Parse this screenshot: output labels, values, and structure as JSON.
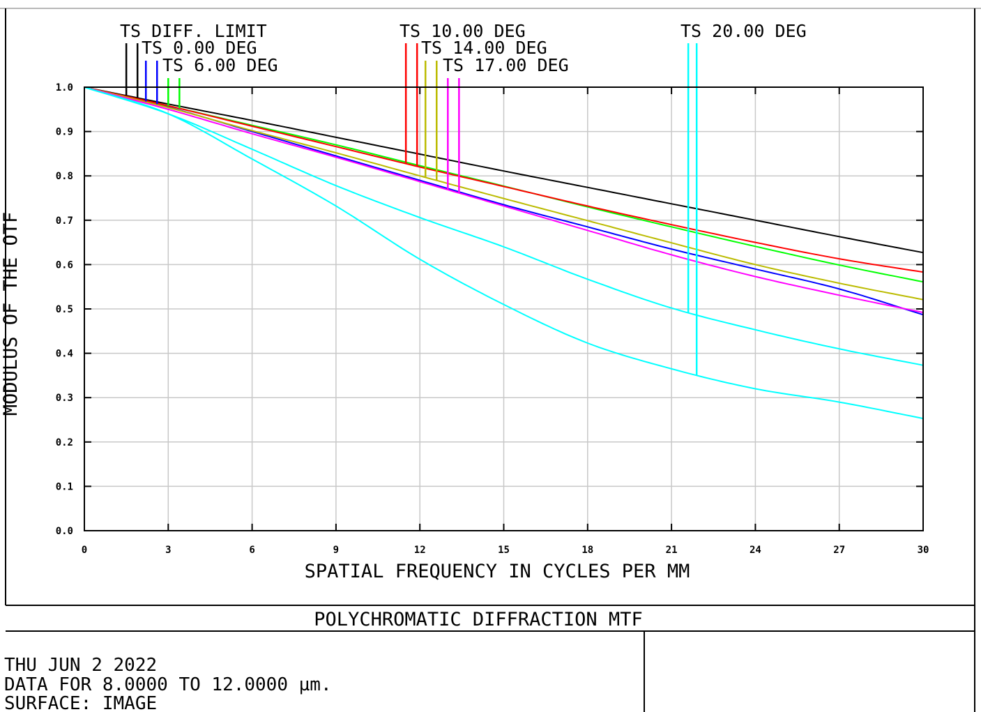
{
  "chart_data": {
    "type": "line",
    "title": "POLYCHROMATIC DIFFRACTION MTF",
    "xlabel": "SPATIAL FREQUENCY IN CYCLES PER MM",
    "ylabel": "MODULUS OF THE OTF",
    "xlim": [
      0,
      30
    ],
    "ylim": [
      0,
      1
    ],
    "x_ticks": [
      "0",
      "3",
      "6",
      "9",
      "12",
      "15",
      "18",
      "21",
      "24",
      "27",
      "30"
    ],
    "y_ticks": [
      "0.0",
      "0.1",
      "0.2",
      "0.3",
      "0.4",
      "0.5",
      "0.6",
      "0.7",
      "0.8",
      "0.9",
      "1.0"
    ],
    "grid": true,
    "legend": [
      {
        "label": "TS DIFF. LIMIT",
        "color": "#000000",
        "marker_x": [
          1.5,
          1.9
        ]
      },
      {
        "label": "TS 0.00 DEG",
        "color": "#0000ff",
        "marker_x": [
          2.2,
          2.6
        ]
      },
      {
        "label": "TS 6.00 DEG",
        "color": "#00ff00",
        "marker_x": [
          3.0,
          3.4
        ]
      },
      {
        "label": "TS 10.00 DEG",
        "color": "#ff0000",
        "marker_x": [
          11.5,
          11.9
        ]
      },
      {
        "label": "TS 14.00 DEG",
        "color": "#bbbb00",
        "marker_x": [
          12.2,
          12.6
        ]
      },
      {
        "label": "TS 17.00 DEG",
        "color": "#ff00ff",
        "marker_x": [
          13.0,
          13.4
        ]
      },
      {
        "label": "TS 20.00 DEG",
        "color": "#00ffff",
        "marker_x": [
          21.6,
          21.9
        ]
      }
    ],
    "series": [
      {
        "name": "TS DIFF. LIMIT",
        "color": "#000000",
        "x": [
          0,
          3,
          6,
          9,
          12,
          15,
          18,
          21,
          24,
          27,
          30
        ],
        "y": [
          1.0,
          0.962,
          0.925,
          0.887,
          0.849,
          0.811,
          0.774,
          0.737,
          0.7,
          0.663,
          0.627
        ]
      },
      {
        "name": "TS 0.00 DEG",
        "color": "#0000ff",
        "x": [
          0,
          3,
          6,
          9,
          12,
          15,
          18,
          21,
          24,
          27,
          30
        ],
        "y": [
          1.0,
          0.955,
          0.9,
          0.845,
          0.79,
          0.735,
          0.685,
          0.635,
          0.59,
          0.545,
          0.487
        ]
      },
      {
        "name": "TS 6.00 DEG",
        "color": "#00ff00",
        "x": [
          0,
          3,
          6,
          9,
          12,
          15,
          18,
          21,
          24,
          27,
          30
        ],
        "y": [
          1.0,
          0.958,
          0.914,
          0.87,
          0.823,
          0.777,
          0.73,
          0.685,
          0.641,
          0.599,
          0.561
        ]
      },
      {
        "name": "TS 10.00 DEG",
        "color": "#ff0000",
        "x": [
          0,
          3,
          6,
          9,
          12,
          15,
          18,
          21,
          24,
          27,
          30
        ],
        "y": [
          1.0,
          0.958,
          0.912,
          0.866,
          0.82,
          0.776,
          0.732,
          0.69,
          0.65,
          0.613,
          0.583
        ]
      },
      {
        "name": "TS 14.00 DEG",
        "color": "#bbbb00",
        "x": [
          0,
          3,
          6,
          9,
          12,
          15,
          18,
          21,
          24,
          27,
          30
        ],
        "y": [
          1.0,
          0.954,
          0.902,
          0.852,
          0.8,
          0.749,
          0.699,
          0.649,
          0.6,
          0.558,
          0.521
        ]
      },
      {
        "name": "TS 17.00 DEG",
        "color": "#ff00ff",
        "x": [
          0,
          3,
          6,
          9,
          12,
          15,
          18,
          21,
          24,
          27,
          30
        ],
        "y": [
          1.0,
          0.95,
          0.895,
          0.842,
          0.787,
          0.732,
          0.677,
          0.622,
          0.573,
          0.531,
          0.492
        ]
      },
      {
        "name": "TS 20.00 DEG",
        "color": "#00ffff",
        "x": [
          0,
          3,
          6,
          9,
          12,
          15,
          18,
          21,
          24,
          27,
          30
        ],
        "y": [
          1.0,
          0.94,
          0.86,
          0.778,
          0.706,
          0.64,
          0.567,
          0.502,
          0.453,
          0.41,
          0.373
        ]
      },
      {
        "name": "TS 20.00 DEG",
        "color": "#00ffff",
        "x": [
          0,
          3,
          6,
          9,
          12,
          15,
          18,
          21,
          24,
          27,
          30
        ],
        "y": [
          1.0,
          0.94,
          0.838,
          0.732,
          0.612,
          0.51,
          0.423,
          0.365,
          0.32,
          0.29,
          0.253
        ]
      }
    ]
  },
  "footer": {
    "line1": "THU JUN 2 2022",
    "line2": "DATA FOR 8.0000 TO 12.0000 µm.",
    "line3": "SURFACE: IMAGE"
  },
  "colors": {
    "grid": "#c8c8c8",
    "frame": "#000000",
    "background": "#ffffff"
  }
}
